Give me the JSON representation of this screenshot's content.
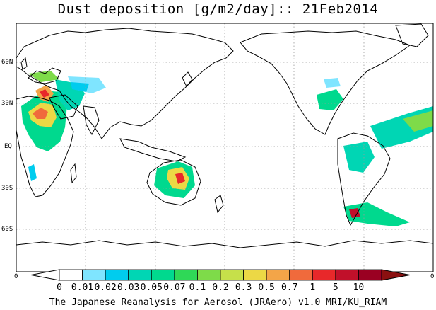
{
  "title": "Dust deposition [g/m2/day]:: 21Feb2014",
  "credit": "The Japanese Reanalysis for Aerosol (JRAero) v1.0 MRI/KU_RIAM",
  "map": {
    "lat_labels": [
      "60N",
      "30N",
      "EQ",
      "30S",
      "60S"
    ],
    "edge_left": "0",
    "edge_right": "0"
  },
  "colorbar": {
    "ticks": [
      "0",
      "0.01",
      "0.02",
      "0.03",
      "0.05",
      "0.07",
      "0.1",
      "0.2",
      "0.3",
      "0.5",
      "0.7",
      "1",
      "5",
      "10"
    ],
    "under_color": "#ffffff",
    "colors": [
      "#ffffff",
      "#7fe5ff",
      "#00ccee",
      "#00d6b4",
      "#00d98e",
      "#2fd857",
      "#7edb49",
      "#c6e04a",
      "#ecd845",
      "#f3a548",
      "#f06a3c",
      "#e8282a",
      "#c1102a",
      "#9a0022"
    ],
    "over_color": "#8b1010"
  }
}
